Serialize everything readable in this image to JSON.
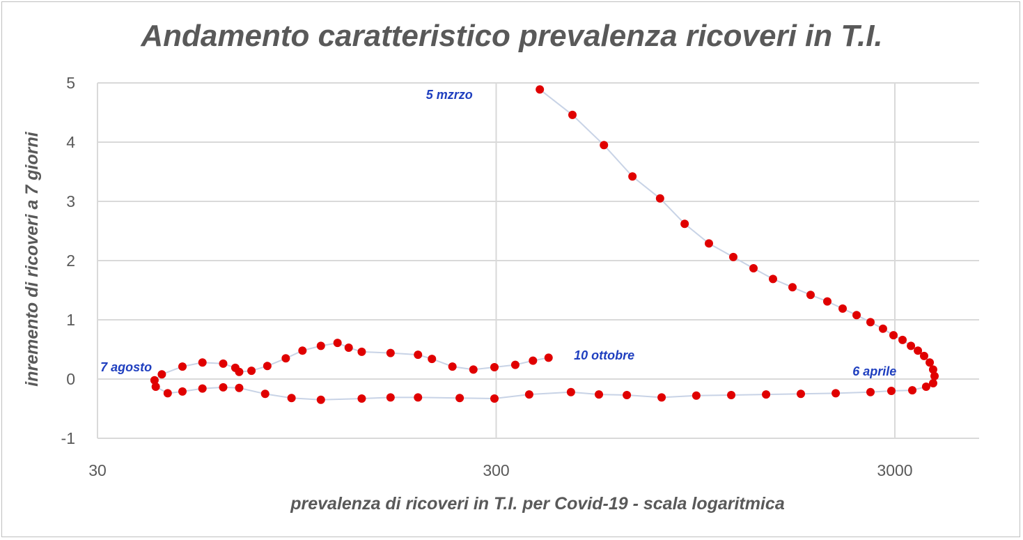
{
  "chart_data": {
    "type": "scatter",
    "title": "Andamento caratteristico prevalenza ricoveri in T.I.",
    "xlabel": "prevalenza di ricoveri in T.I. per Covid-19 - scala logaritmica",
    "ylabel": "inremento di ricoveri a 7 giorni",
    "x_scale": "log",
    "xlim": [
      30,
      5000
    ],
    "ylim": [
      -1,
      5
    ],
    "x_ticks": [
      "30",
      "300",
      "3000"
    ],
    "x_tick_values": [
      30,
      300,
      3000
    ],
    "y_ticks": [
      "5",
      "4",
      "3",
      "2",
      "1",
      "0",
      "-1"
    ],
    "y_tick_values": [
      5,
      4,
      3,
      2,
      1,
      0,
      -1
    ],
    "grid": true,
    "marker_color": "#e00000",
    "line_color": "#c8d3e6",
    "annotation_color": "#1f3fbf",
    "annotations": [
      {
        "text": "5 mzrzo",
        "x": 200,
        "y": 4.8
      },
      {
        "text": "7 agosto",
        "x": 30.5,
        "y": 0.2
      },
      {
        "text": "10 ottobre",
        "x": 470,
        "y": 0.4
      },
      {
        "text": "6 aprile",
        "x": 2350,
        "y": 0.13
      }
    ],
    "series": [
      {
        "name": "ricoveri T.I.",
        "points": [
          [
            386,
            4.89
          ],
          [
            466,
            4.46
          ],
          [
            559,
            3.95
          ],
          [
            659,
            3.42
          ],
          [
            773,
            3.05
          ],
          [
            891,
            2.62
          ],
          [
            1025,
            2.29
          ],
          [
            1180,
            2.06
          ],
          [
            1326,
            1.87
          ],
          [
            1484,
            1.69
          ],
          [
            1661,
            1.55
          ],
          [
            1844,
            1.42
          ],
          [
            2031,
            1.31
          ],
          [
            2219,
            1.19
          ],
          [
            2405,
            1.08
          ],
          [
            2606,
            0.96
          ],
          [
            2801,
            0.85
          ],
          [
            2976,
            0.74
          ],
          [
            3136,
            0.66
          ],
          [
            3292,
            0.56
          ],
          [
            3427,
            0.48
          ],
          [
            3552,
            0.39
          ],
          [
            3669,
            0.28
          ],
          [
            3742,
            0.16
          ],
          [
            3773,
            0.05
          ],
          [
            3742,
            -0.07
          ],
          [
            3594,
            -0.13
          ],
          [
            3318,
            -0.19
          ],
          [
            2940,
            -0.2
          ],
          [
            2606,
            -0.22
          ],
          [
            2132,
            -0.24
          ],
          [
            1743,
            -0.25
          ],
          [
            1426,
            -0.26
          ],
          [
            1166,
            -0.27
          ],
          [
            953,
            -0.28
          ],
          [
            780,
            -0.31
          ],
          [
            638,
            -0.27
          ],
          [
            543,
            -0.26
          ],
          [
            462,
            -0.22
          ],
          [
            363,
            -0.26
          ],
          [
            297,
            -0.33
          ],
          [
            243,
            -0.32
          ],
          [
            191,
            -0.31
          ],
          [
            163,
            -0.31
          ],
          [
            138,
            -0.33
          ],
          [
            109,
            -0.35
          ],
          [
            92,
            -0.32
          ],
          [
            79,
            -0.25
          ],
          [
            68,
            -0.15
          ],
          [
            62,
            -0.14
          ],
          [
            55,
            -0.16
          ],
          [
            49,
            -0.21
          ],
          [
            45,
            -0.24
          ],
          [
            42,
            -0.13
          ],
          [
            41.7,
            -0.02
          ],
          [
            43.5,
            0.08
          ],
          [
            49,
            0.21
          ],
          [
            55,
            0.28
          ],
          [
            62,
            0.26
          ],
          [
            66.5,
            0.19
          ],
          [
            68,
            0.12
          ],
          [
            73,
            0.14
          ],
          [
            80,
            0.22
          ],
          [
            89,
            0.35
          ],
          [
            98,
            0.48
          ],
          [
            109,
            0.56
          ],
          [
            120,
            0.61
          ],
          [
            128,
            0.53
          ],
          [
            138,
            0.46
          ],
          [
            163,
            0.44
          ],
          [
            191,
            0.41
          ],
          [
            207,
            0.34
          ],
          [
            233,
            0.21
          ],
          [
            263,
            0.16
          ],
          [
            297,
            0.2
          ],
          [
            335,
            0.24
          ],
          [
            371,
            0.31
          ],
          [
            406,
            0.36
          ]
        ]
      }
    ]
  }
}
